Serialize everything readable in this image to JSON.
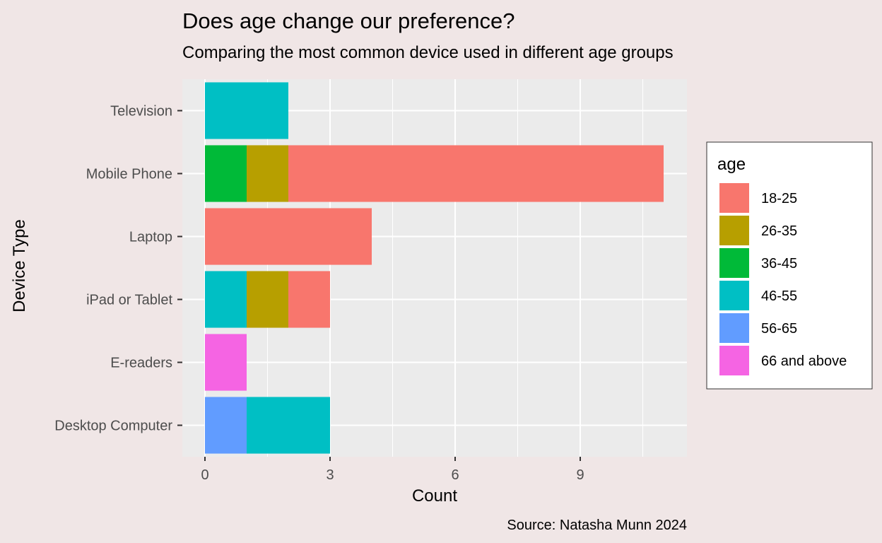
{
  "chart_data": {
    "type": "bar",
    "orientation": "horizontal",
    "stacked": true,
    "title": "Does age change our preference?",
    "subtitle": "Comparing the most common device used in different age groups",
    "xlabel": "Count",
    "ylabel": "Device Type",
    "caption": "Source: Natasha Munn 2024",
    "xlim": [
      0,
      11.5
    ],
    "xticks": [
      0,
      3,
      6,
      9
    ],
    "grid": true,
    "legend": {
      "title": "age",
      "position": "right"
    },
    "categories": [
      "Desktop Computer",
      "E-readers",
      "iPad or Tablet",
      "Laptop",
      "Mobile Phone",
      "Television"
    ],
    "series": [
      {
        "name": "18-25",
        "color": "#F8766D",
        "values": [
          0,
          0,
          1,
          4,
          9,
          0
        ]
      },
      {
        "name": "26-35",
        "color": "#B79F00",
        "values": [
          0,
          0,
          1,
          0,
          1,
          0
        ]
      },
      {
        "name": "36-45",
        "color": "#00BA38",
        "values": [
          0,
          0,
          0,
          0,
          1,
          0
        ]
      },
      {
        "name": "46-55",
        "color": "#00BFC4",
        "values": [
          2,
          0,
          1,
          0,
          0,
          2
        ]
      },
      {
        "name": "56-65",
        "color": "#619CFF",
        "values": [
          1,
          0,
          0,
          0,
          0,
          0
        ]
      },
      {
        "name": "66 and above",
        "color": "#F564E3",
        "values": [
          0,
          1,
          0,
          0,
          0,
          0
        ]
      }
    ]
  }
}
